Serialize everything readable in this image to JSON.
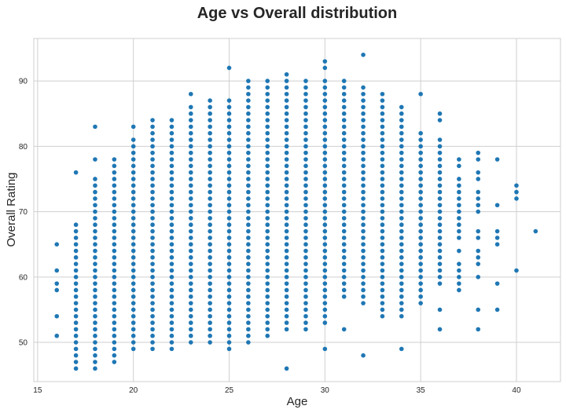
{
  "chart_data": {
    "type": "scatter",
    "title": "Age vs Overall distribution",
    "xlabel": "Age",
    "ylabel": "Overall Rating",
    "xlim": [
      14.8,
      42.3
    ],
    "ylim": [
      44,
      96.5
    ],
    "xticks": [
      15,
      20,
      25,
      30,
      35,
      40
    ],
    "yticks": [
      50,
      60,
      70,
      80,
      90
    ],
    "grid": true,
    "point_color": "#1f77b4",
    "columns": [
      {
        "x": 16,
        "ys": [
          51,
          54,
          58,
          59,
          61,
          65
        ]
      },
      {
        "x": 17,
        "min": 46,
        "max": 68,
        "extra": [
          76
        ]
      },
      {
        "x": 18,
        "min": 46,
        "max": 75,
        "extra": [
          78,
          83
        ]
      },
      {
        "x": 19,
        "min": 47,
        "max": 78
      },
      {
        "x": 20,
        "min": 49,
        "max": 81,
        "extra": [
          83
        ]
      },
      {
        "x": 21,
        "min": 49,
        "max": 84
      },
      {
        "x": 22,
        "min": 49,
        "max": 84
      },
      {
        "x": 23,
        "min": 50,
        "max": 86,
        "extra": [
          88
        ]
      },
      {
        "x": 24,
        "min": 50,
        "max": 87
      },
      {
        "x": 25,
        "min": 49,
        "max": 87,
        "extra": [
          92
        ]
      },
      {
        "x": 26,
        "min": 50,
        "max": 90
      },
      {
        "x": 27,
        "min": 51,
        "max": 90
      },
      {
        "x": 28,
        "min": 52,
        "max": 90,
        "extra": [
          46,
          91
        ]
      },
      {
        "x": 29,
        "min": 52,
        "max": 90
      },
      {
        "x": 30,
        "min": 53,
        "max": 90,
        "extra": [
          49,
          92,
          93
        ]
      },
      {
        "x": 31,
        "min": 57,
        "max": 90,
        "extra": [
          52
        ]
      },
      {
        "x": 32,
        "min": 56,
        "max": 89,
        "extra": [
          48,
          94
        ]
      },
      {
        "x": 33,
        "min": 54,
        "max": 88
      },
      {
        "x": 34,
        "min": 54,
        "max": 86,
        "extra": [
          49
        ]
      },
      {
        "x": 35,
        "min": 56,
        "max": 82,
        "extra": [
          88
        ]
      },
      {
        "x": 36,
        "ys": [
          52,
          55,
          59,
          60,
          61,
          62,
          63,
          64,
          65,
          66,
          67,
          68,
          69,
          70,
          71,
          72,
          73,
          74,
          75,
          76,
          77,
          78,
          79,
          80,
          81,
          84,
          85
        ]
      },
      {
        "x": 37,
        "ys": [
          58,
          59,
          60,
          61,
          62,
          64,
          66,
          67,
          68,
          69,
          70,
          71,
          72,
          73,
          74,
          75,
          77,
          78
        ]
      },
      {
        "x": 38,
        "ys": [
          52,
          55,
          60,
          62,
          63,
          64,
          66,
          67,
          70,
          71,
          72,
          73,
          75,
          76,
          78,
          79
        ]
      },
      {
        "x": 39,
        "ys": [
          55,
          59,
          65,
          66,
          67,
          71,
          78
        ]
      },
      {
        "x": 40,
        "ys": [
          61,
          72,
          73,
          74
        ]
      },
      {
        "x": 41,
        "ys": [
          67
        ]
      }
    ]
  }
}
